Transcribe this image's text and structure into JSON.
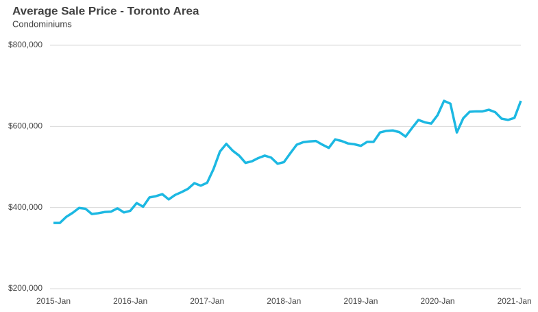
{
  "chart_data": {
    "type": "line",
    "title": "Average Sale Price - Toronto Area",
    "subtitle": "Condominiums",
    "categories": [
      "2015-Jan",
      null,
      null,
      null,
      null,
      null,
      null,
      null,
      null,
      null,
      null,
      null,
      "2016-Jan",
      null,
      null,
      null,
      null,
      null,
      null,
      null,
      null,
      null,
      null,
      null,
      "2017-Jan",
      null,
      null,
      null,
      null,
      null,
      null,
      null,
      null,
      null,
      null,
      null,
      "2018-Jan",
      null,
      null,
      null,
      null,
      null,
      null,
      null,
      null,
      null,
      null,
      null,
      "2019-Jan",
      null,
      null,
      null,
      null,
      null,
      null,
      null,
      null,
      null,
      null,
      null,
      "2020-Jan",
      null,
      null,
      null,
      null,
      null,
      null,
      null,
      null,
      null,
      null,
      null,
      "2021-Jan",
      null
    ],
    "values": [
      362000,
      362000,
      377000,
      387000,
      399000,
      397000,
      384000,
      386000,
      389000,
      390000,
      398000,
      388000,
      392000,
      411000,
      402000,
      425000,
      428000,
      433000,
      420000,
      431000,
      438000,
      446000,
      460000,
      454000,
      461000,
      495000,
      538000,
      557000,
      540000,
      528000,
      510000,
      514000,
      522000,
      528000,
      523000,
      508000,
      512000,
      534000,
      555000,
      561000,
      563000,
      564000,
      555000,
      547000,
      568000,
      564000,
      558000,
      556000,
      552000,
      562000,
      562000,
      585000,
      589000,
      590000,
      586000,
      575000,
      596000,
      616000,
      610000,
      607000,
      628000,
      663000,
      656000,
      585000,
      620000,
      636000,
      637000,
      637000,
      641000,
      635000,
      619000,
      616000,
      621000,
      663000
    ],
    "color": "#1cb8e2",
    "ylim": [
      200000,
      800000
    ],
    "yticks": [
      {
        "value": 200000,
        "label": "$200,000"
      },
      {
        "value": 400000,
        "label": "$400,000"
      },
      {
        "value": 600000,
        "label": "$600,000"
      },
      {
        "value": 800000,
        "label": "$800,000"
      }
    ],
    "grid": true
  }
}
